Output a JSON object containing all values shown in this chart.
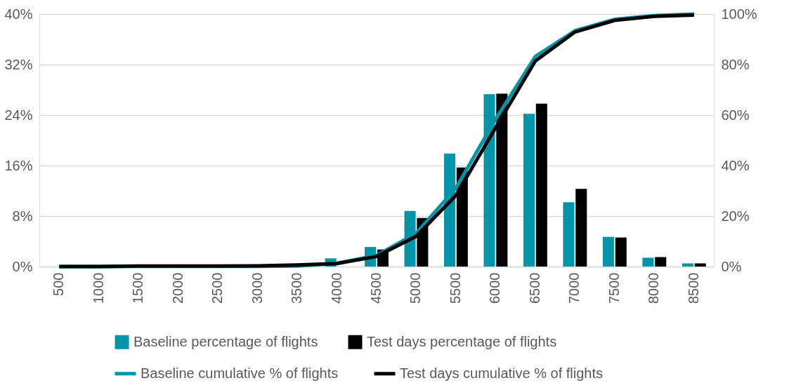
{
  "chart_data": {
    "type": "bar",
    "categories": [
      "500",
      "1000",
      "1500",
      "2000",
      "2500",
      "3000",
      "3500",
      "4000",
      "4500",
      "5000",
      "5500",
      "6000",
      "6500",
      "7000",
      "7500",
      "8000",
      "8500"
    ],
    "series": [
      {
        "name": "Baseline percentage of flights",
        "color": "#0095a8",
        "values": [
          null,
          null,
          null,
          null,
          null,
          null,
          null,
          1.3,
          3.1,
          8.8,
          17.9,
          27.3,
          24.2,
          10.2,
          4.7,
          1.4,
          0.5
        ]
      },
      {
        "name": "Test days percentage of flights",
        "color": "#000000",
        "values": [
          null,
          null,
          null,
          null,
          null,
          null,
          null,
          null,
          2.7,
          7.7,
          15.7,
          27.4,
          25.8,
          12.3,
          4.6,
          1.5,
          0.5
        ]
      },
      {
        "name": "Baseline cumulative % of flights",
        "type": "line",
        "axis": "y2",
        "color": "#0095a8",
        "values": [
          0,
          0,
          0.1,
          0.1,
          0.1,
          0.1,
          0.2,
          1.3,
          4.4,
          13.2,
          31.1,
          58.4,
          83.2,
          93.4,
          97.9,
          99.4,
          100
        ]
      },
      {
        "name": "Test days cumulative % of flights",
        "type": "line",
        "axis": "y2",
        "color": "#000000",
        "values": [
          0,
          0,
          0.2,
          0.2,
          0.2,
          0.3,
          0.6,
          1.2,
          4.0,
          12.0,
          28.2,
          55.0,
          81.4,
          92.9,
          97.5,
          99.1,
          99.6
        ]
      }
    ],
    "ylim": [
      0,
      40
    ],
    "yticks": [
      {
        "value": 0,
        "label": "0%"
      },
      {
        "value": 8,
        "label": "8%"
      },
      {
        "value": 16,
        "label": "16%"
      },
      {
        "value": 24,
        "label": "24%"
      },
      {
        "value": 32,
        "label": "32%"
      },
      {
        "value": 40,
        "label": "40%"
      }
    ],
    "y2lim": [
      0,
      100
    ],
    "y2ticks": [
      {
        "value": 0,
        "label": "0%"
      },
      {
        "value": 20,
        "label": "20%"
      },
      {
        "value": 40,
        "label": "40%"
      },
      {
        "value": 60,
        "label": "60%"
      },
      {
        "value": 80,
        "label": "80%"
      },
      {
        "value": 100,
        "label": "100%"
      }
    ],
    "grid": "y",
    "legend": "bottom"
  }
}
